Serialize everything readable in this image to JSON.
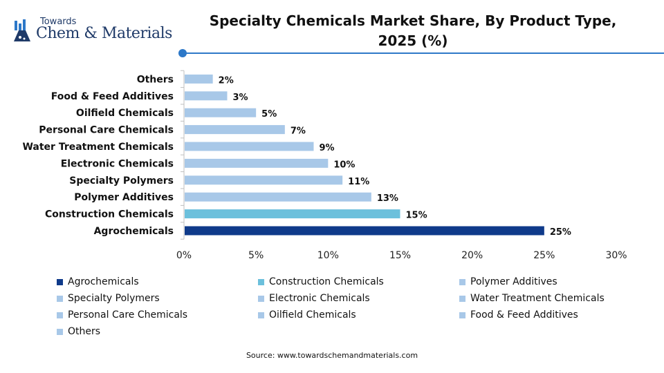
{
  "brand": {
    "small": "Towards",
    "big": "Chem & Materials"
  },
  "title_lines": [
    "Specialty Chemicals Market Share, By Product Type,",
    "2025 (%)"
  ],
  "source": "Source: www.towardschemandmaterials.com",
  "colors": {
    "dark": "#0f3a8a",
    "mid": "#6cc0dc",
    "light": "#a8c8e8",
    "rule": "#2d78c8"
  },
  "chart_data": {
    "type": "bar",
    "orientation": "horizontal",
    "categories": [
      "Agrochemicals",
      "Construction Chemicals",
      "Polymer Additives",
      "Specialty Polymers",
      "Electronic Chemicals",
      "Water Treatment Chemicals",
      "Personal Care Chemicals",
      "Oilfield Chemicals",
      "Food & Feed Additives",
      "Others"
    ],
    "values": [
      25,
      15,
      13,
      11,
      10,
      9,
      7,
      5,
      3,
      2
    ],
    "data_labels": [
      "25%",
      "15%",
      "13%",
      "11%",
      "10%",
      "9%",
      "7%",
      "5%",
      "3%",
      "2%"
    ],
    "bar_colors": [
      "#0f3a8a",
      "#6cc0dc",
      "#a8c8e8",
      "#a8c8e8",
      "#a8c8e8",
      "#a8c8e8",
      "#a8c8e8",
      "#a8c8e8",
      "#a8c8e8",
      "#a8c8e8"
    ],
    "xlim": [
      0,
      30
    ],
    "x_ticks": [
      0,
      5,
      10,
      15,
      20,
      25,
      30
    ],
    "x_tick_labels": [
      "0%",
      "5%",
      "10%",
      "15%",
      "20%",
      "25%",
      "30%"
    ],
    "grid": false,
    "legend_position": "bottom"
  }
}
